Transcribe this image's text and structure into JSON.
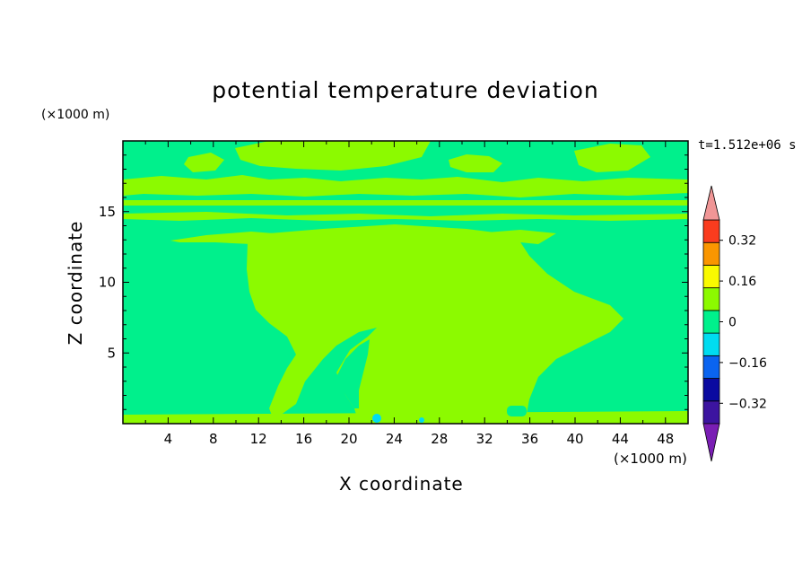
{
  "chart_data": {
    "type": "heatmap",
    "title": "potential temperature deviation",
    "xlabel": "X coordinate",
    "ylabel": "Z coordinate",
    "x_unit": "(×1000 m)",
    "y_unit": "(×1000 m)",
    "time_label": "t=1.512e+06 s",
    "xlim": [
      0,
      50
    ],
    "ylim": [
      0,
      20
    ],
    "x_ticks": [
      4,
      8,
      12,
      16,
      20,
      24,
      28,
      32,
      36,
      40,
      44,
      48
    ],
    "y_ticks": [
      5,
      10,
      15
    ],
    "colorbar": {
      "levels": [
        -0.4,
        -0.32,
        -0.24,
        -0.16,
        -0.08,
        0,
        0.08,
        0.16,
        0.24,
        0.32,
        0.4
      ],
      "labels": [
        "0.32",
        "0.16",
        "0",
        "−0.16",
        "−0.32"
      ],
      "label_values": [
        0.32,
        0.16,
        0,
        -0.16,
        -0.32
      ],
      "colors": [
        "#7a1eb4",
        "#3c14a0",
        "#0a0aa0",
        "#0a64f0",
        "#00dcf0",
        "#00f08c",
        "#8cfa00",
        "#fafa00",
        "#fa9600",
        "#fa3c1e",
        "#f09696"
      ]
    },
    "background_value": "0 to -0.08",
    "dominant_positive_value": "0 to 0.08"
  }
}
